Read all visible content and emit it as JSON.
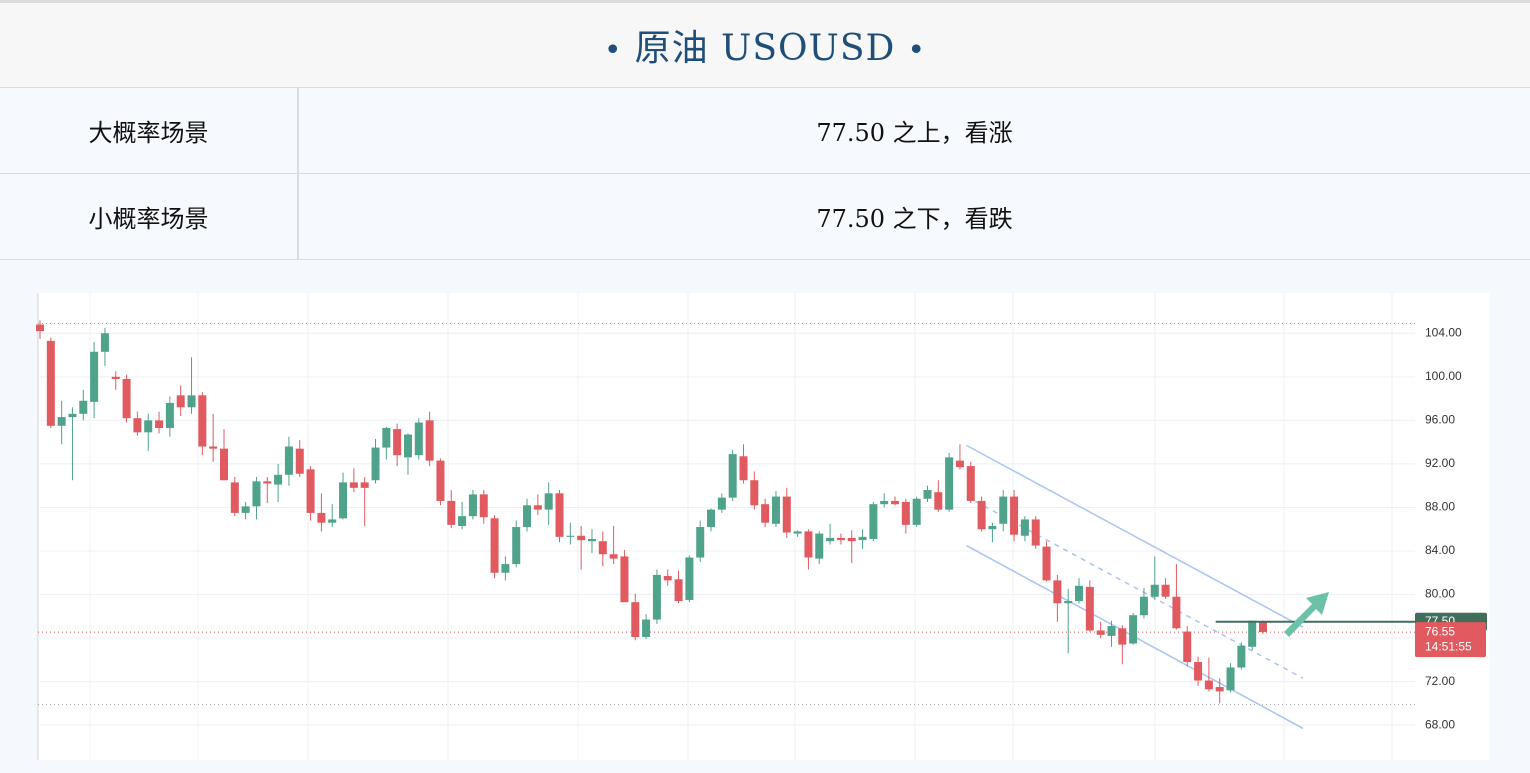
{
  "header": {
    "title": "原油 USOUSD"
  },
  "table": {
    "rows": [
      [
        "大概率场景",
        "77.50 之上，看涨"
      ],
      [
        "小概率场景",
        "77.50 之下，看跌"
      ]
    ]
  },
  "chart_data": {
    "type": "candlestick",
    "up_color": "#4fa38a",
    "down_color": "#e05a5f",
    "ylim": [
      64.8,
      107.7
    ],
    "yticks": [
      {
        "value": 68,
        "label": "68.00"
      },
      {
        "value": 72,
        "label": "72.00"
      },
      {
        "value": 76,
        "label": "76.00"
      },
      {
        "value": 80,
        "label": "80.00"
      },
      {
        "value": 84,
        "label": "84.00"
      },
      {
        "value": 88,
        "label": "88.00"
      },
      {
        "value": 92,
        "label": "92.00"
      },
      {
        "value": 96,
        "label": "96.00"
      },
      {
        "value": 100,
        "label": "100.00"
      },
      {
        "value": 104,
        "label": "104.00"
      }
    ],
    "grid": true,
    "ohlc": [
      [
        104.8,
        105.2,
        103.5,
        104.2
      ],
      [
        103.3,
        103.6,
        95.3,
        95.5
      ],
      [
        95.5,
        97.8,
        93.8,
        96.3
      ],
      [
        96.3,
        97.2,
        90.5,
        96.6
      ],
      [
        96.6,
        98.8,
        96,
        97.8
      ],
      [
        97.7,
        103.2,
        96.2,
        102.3
      ],
      [
        102.3,
        104.5,
        101,
        104
      ],
      [
        100,
        100.5,
        98.8,
        99.8
      ],
      [
        99.8,
        100.2,
        95.8,
        96.2
      ],
      [
        96.2,
        96.8,
        94.6,
        94.9
      ],
      [
        94.9,
        96.6,
        93.2,
        96
      ],
      [
        96,
        96.8,
        94.8,
        95.3
      ],
      [
        95.3,
        98.2,
        94.5,
        97.6
      ],
      [
        98.3,
        99.2,
        96.4,
        97.2
      ],
      [
        97.2,
        101.8,
        96.6,
        98.3
      ],
      [
        98.3,
        98.6,
        92.8,
        93.6
      ],
      [
        93.6,
        96.6,
        92.2,
        93.4
      ],
      [
        93.4,
        95.2,
        90.5,
        90.5
      ],
      [
        90.3,
        90.8,
        87.2,
        87.5
      ],
      [
        87.5,
        88.5,
        86.9,
        88.1
      ],
      [
        88.1,
        90.8,
        86.9,
        90.4
      ],
      [
        90.4,
        90.8,
        88.4,
        90.2
      ],
      [
        90.1,
        92,
        88.5,
        91
      ],
      [
        91,
        94.5,
        90,
        93.6
      ],
      [
        93.4,
        94.2,
        90.8,
        91.1
      ],
      [
        91.5,
        91.8,
        86.8,
        87.5
      ],
      [
        87.5,
        89.3,
        85.8,
        86.6
      ],
      [
        86.6,
        88.3,
        86.2,
        86.9
      ],
      [
        87,
        91.2,
        86.9,
        90.3
      ],
      [
        90.3,
        91.6,
        89.4,
        89.8
      ],
      [
        90.3,
        90.8,
        86.3,
        89.8
      ],
      [
        90.5,
        94.3,
        90.2,
        93.5
      ],
      [
        93.5,
        95.4,
        92.4,
        95.3
      ],
      [
        95.2,
        95.7,
        91.8,
        92.8
      ],
      [
        92.6,
        94.8,
        91,
        94.7
      ],
      [
        92.8,
        96.2,
        92.4,
        95.8
      ],
      [
        96,
        96.8,
        91.8,
        92.3
      ],
      [
        92.3,
        92.5,
        88.2,
        88.6
      ],
      [
        88.6,
        89.6,
        86.1,
        86.4
      ],
      [
        86.3,
        88.5,
        86,
        87.2
      ],
      [
        87.2,
        89.6,
        86.9,
        89.2
      ],
      [
        89.2,
        89.6,
        86.5,
        87.1
      ],
      [
        87,
        87.3,
        81.5,
        82
      ],
      [
        82,
        83.5,
        81.3,
        82.8
      ],
      [
        82.8,
        86.8,
        82.5,
        86.2
      ],
      [
        86.2,
        88.8,
        85.8,
        88.2
      ],
      [
        88.2,
        89.2,
        87.3,
        87.8
      ],
      [
        87.8,
        90.3,
        86.4,
        89.3
      ],
      [
        89.3,
        89.6,
        84.8,
        85.3
      ],
      [
        85.3,
        86.6,
        84.6,
        85.4
      ],
      [
        85.4,
        86.3,
        82.3,
        85
      ],
      [
        84.9,
        86,
        83.8,
        85.1
      ],
      [
        84.9,
        85.8,
        82.6,
        83.7
      ],
      [
        83.7,
        86.3,
        82.8,
        83.3
      ],
      [
        83.5,
        84.1,
        79.3,
        79.3
      ],
      [
        79.3,
        80.1,
        75.8,
        76.1
      ],
      [
        76.1,
        78.2,
        75.9,
        77.7
      ],
      [
        77.7,
        82.3,
        77.3,
        81.8
      ],
      [
        81.7,
        82.3,
        80.8,
        81.3
      ],
      [
        81.4,
        82.2,
        79.2,
        79.4
      ],
      [
        79.5,
        83.6,
        79.3,
        83.4
      ],
      [
        83.4,
        86.8,
        83,
        86.2
      ],
      [
        86.2,
        87.9,
        85.8,
        87.8
      ],
      [
        87.8,
        89.3,
        87.5,
        88.9
      ],
      [
        88.9,
        93.3,
        88.6,
        92.9
      ],
      [
        92.7,
        93.8,
        90.2,
        90.5
      ],
      [
        90.5,
        91.3,
        87.8,
        88.2
      ],
      [
        88.3,
        88.8,
        86.2,
        86.6
      ],
      [
        86.5,
        89.5,
        86.2,
        89
      ],
      [
        89,
        89.8,
        85.2,
        85.7
      ],
      [
        85.6,
        85.9,
        85.3,
        85.8
      ],
      [
        85.8,
        86,
        82.3,
        83.4
      ],
      [
        83.3,
        85.8,
        82.8,
        85.6
      ],
      [
        84.9,
        86.5,
        84.6,
        85.2
      ],
      [
        85.2,
        85.6,
        84.6,
        85
      ],
      [
        85.2,
        85.9,
        82.9,
        84.9
      ],
      [
        85,
        86,
        84.2,
        85.3
      ],
      [
        85.1,
        88.5,
        84.9,
        88.3
      ],
      [
        88.3,
        89.3,
        88,
        88.6
      ],
      [
        88.6,
        89,
        88.2,
        88.3
      ],
      [
        88.5,
        88.8,
        85.6,
        86.4
      ],
      [
        86.4,
        89,
        86.2,
        88.8
      ],
      [
        88.8,
        90,
        88.5,
        89.6
      ],
      [
        89.4,
        90.5,
        87.6,
        87.8
      ],
      [
        87.8,
        93,
        87.6,
        92.6
      ],
      [
        92.3,
        93.8,
        91.5,
        91.7
      ],
      [
        91.8,
        92.2,
        88.4,
        88.6
      ],
      [
        88.6,
        89,
        85.8,
        86
      ],
      [
        86,
        86.6,
        84.8,
        86.3
      ],
      [
        86.5,
        89.6,
        85.8,
        89
      ],
      [
        89,
        89.6,
        84.9,
        85.5
      ],
      [
        85.4,
        87.2,
        84.9,
        86.9
      ],
      [
        86.9,
        87.2,
        84.2,
        84.5
      ],
      [
        84.4,
        84.9,
        81.2,
        81.3
      ],
      [
        81.3,
        81.8,
        77.5,
        79.2
      ],
      [
        79.2,
        80.5,
        74.6,
        79.4
      ],
      [
        79.4,
        81.5,
        79.2,
        80.8
      ],
      [
        80.7,
        81.3,
        76.6,
        76.7
      ],
      [
        76.7,
        77.5,
        76,
        76.3
      ],
      [
        76.2,
        77.6,
        75.2,
        77.1
      ],
      [
        76.9,
        77.2,
        73.6,
        75.4
      ],
      [
        75.5,
        78.3,
        75.4,
        78.1
      ],
      [
        78.1,
        80.6,
        77.8,
        79.8
      ],
      [
        79.8,
        83.5,
        79.5,
        80.9
      ],
      [
        80.9,
        81.5,
        79.6,
        79.8
      ],
      [
        79.8,
        82.8,
        76.8,
        76.9
      ],
      [
        76.6,
        77.1,
        73.4,
        73.8
      ],
      [
        73.8,
        74.3,
        71.6,
        72.1
      ],
      [
        72.1,
        74.2,
        71.1,
        71.3
      ],
      [
        71.5,
        72.3,
        70,
        71.1
      ],
      [
        71.2,
        73.7,
        71,
        73.3
      ],
      [
        73.3,
        75.6,
        73.1,
        75.3
      ],
      [
        75.2,
        77.6,
        74.9,
        77.6
      ],
      [
        77.5,
        77.6,
        76.4,
        76.55
      ]
    ],
    "ref_lines": [
      104.9,
      69.9
    ],
    "level": {
      "value": 77.5,
      "label": "77.50",
      "color": "#3f6e5a"
    },
    "last_price": {
      "value": 76.55,
      "time": "14:51:55",
      "color": "#e05a5f"
    },
    "channel": [
      {
        "x": [
          85.6,
          116.7
        ],
        "y": [
          93.7,
          77.0
        ],
        "dashed": false
      },
      {
        "x": [
          85.6,
          116.7
        ],
        "y": [
          89.0,
          72.3
        ],
        "dashed": true
      },
      {
        "x": [
          85.6,
          116.7
        ],
        "y": [
          84.5,
          67.7
        ],
        "dashed": false
      }
    ]
  }
}
